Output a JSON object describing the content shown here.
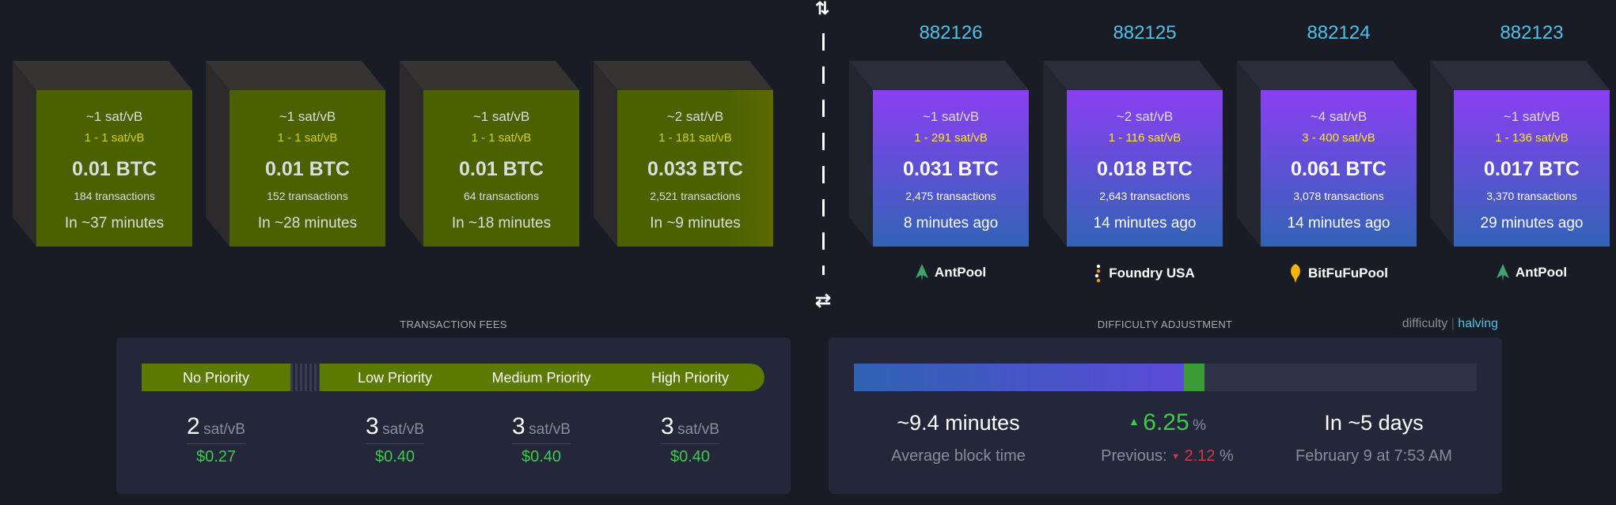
{
  "mempool_blocks": [
    {
      "median_fee": "~1 sat/vB",
      "fee_range": "1 - 1 sat/vB",
      "total": "0.01 BTC",
      "tx_count": "184 transactions",
      "eta": "In ~37 minutes"
    },
    {
      "median_fee": "~1 sat/vB",
      "fee_range": "1 - 1 sat/vB",
      "total": "0.01 BTC",
      "tx_count": "152 transactions",
      "eta": "In ~28 minutes"
    },
    {
      "median_fee": "~1 sat/vB",
      "fee_range": "1 - 1 sat/vB",
      "total": "0.01 BTC",
      "tx_count": "64 transactions",
      "eta": "In ~18 minutes"
    },
    {
      "median_fee": "~2 sat/vB",
      "fee_range": "1 - 181 sat/vB",
      "total": "0.033 BTC",
      "tx_count": "2,521 transactions",
      "eta": "In ~9 minutes"
    }
  ],
  "mined_blocks": [
    {
      "height": "882126",
      "median_fee": "~1 sat/vB",
      "fee_range": "1 - 291 sat/vB",
      "total": "0.031 BTC",
      "tx_count": "2,475 transactions",
      "age": "8 minutes ago",
      "pool": "AntPool",
      "pool_icon": "antpool-icon"
    },
    {
      "height": "882125",
      "median_fee": "~2 sat/vB",
      "fee_range": "1 - 116 sat/vB",
      "total": "0.018 BTC",
      "tx_count": "2,643 transactions",
      "age": "14 minutes ago",
      "pool": "Foundry USA",
      "pool_icon": "foundry-icon"
    },
    {
      "height": "882124",
      "median_fee": "~4 sat/vB",
      "fee_range": "3 - 400 sat/vB",
      "total": "0.061 BTC",
      "tx_count": "3,078 transactions",
      "age": "14 minutes ago",
      "pool": "BitFuFuPool",
      "pool_icon": "bitfufu-icon"
    },
    {
      "height": "882123",
      "median_fee": "~1 sat/vB",
      "fee_range": "1 - 136 sat/vB",
      "total": "0.017 BTC",
      "tx_count": "3,370 transactions",
      "age": "29 minutes ago",
      "pool": "AntPool",
      "pool_icon": "antpool-icon"
    }
  ],
  "divider": {
    "top_icon": "⇅",
    "bottom_icon": "⇄"
  },
  "fees": {
    "title": "TRANSACTION FEES",
    "unit": "sat/vB",
    "priorities": [
      {
        "label": "No Priority",
        "value": "2",
        "usd": "$0.27"
      },
      {
        "label": "Low Priority",
        "value": "3",
        "usd": "$0.40"
      },
      {
        "label": "Medium Priority",
        "value": "3",
        "usd": "$0.40"
      },
      {
        "label": "High Priority",
        "value": "3",
        "usd": "$0.40"
      }
    ]
  },
  "difficulty": {
    "title": "DIFFICULTY ADJUSTMENT",
    "toggle_difficulty": "difficulty",
    "toggle_separator": "|",
    "toggle_halving": "halving",
    "progress_percent": 53,
    "ahead_percent": 3.3,
    "avg_block_time": "~9.4 minutes",
    "avg_block_time_label": "Average block time",
    "change": "6.25",
    "change_unit": "%",
    "previous_label": "Previous:",
    "previous_change": "2.12",
    "previous_unit": "%",
    "eta": "In ~5 days",
    "eta_date": "February 9 at 7:53 AM",
    "colors": {
      "up": "#3bcc49",
      "down": "#dc3545",
      "accent": "#4fc1e9"
    }
  }
}
